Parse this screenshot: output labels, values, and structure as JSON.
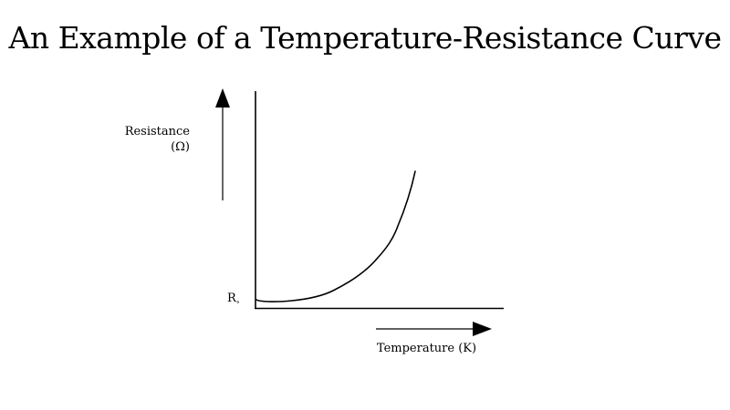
{
  "title": "An Example of a Temperature-Resistance Curve",
  "y_axis": {
    "label_line1": "Resistance",
    "label_line2": "(Ω)"
  },
  "x_axis": {
    "label": "Temperature (K)"
  },
  "r0_label": {
    "main": "R",
    "sub": "∘"
  }
}
